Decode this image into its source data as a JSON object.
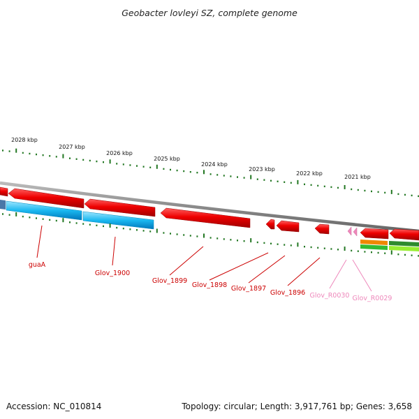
{
  "title": "Geobacter lovleyi SZ, complete genome",
  "footer": {
    "accession": "Accession: NC_010814",
    "summary": "Topology: circular; Length: 3,917,761 bp; Genes: 3,658"
  },
  "ruler": [
    "2028 kbp",
    "2027 kbp",
    "2026 kbp",
    "2025 kbp",
    "2024 kbp",
    "2023 kbp",
    "2022 kbp",
    "2021 kbp"
  ],
  "colors": {
    "gene_red": "#ee0000",
    "gene_blue": "#00aaee",
    "rna_pink": "#ee88bb",
    "backbone": "#888888",
    "tick_green": "#227722",
    "label_red": "#cc0000",
    "label_pink": "#ee88bb",
    "orange": "#ee8800",
    "light_green": "#99ee33",
    "green": "#33bb33"
  },
  "genes": [
    {
      "name": "guaA",
      "kind": "cds"
    },
    {
      "name": "Glov_1900",
      "kind": "cds"
    },
    {
      "name": "Glov_1899",
      "kind": "cds"
    },
    {
      "name": "Glov_1898",
      "kind": "cds"
    },
    {
      "name": "Glov_1897",
      "kind": "cds"
    },
    {
      "name": "Glov_1896",
      "kind": "cds"
    },
    {
      "name": "Glov_R0030",
      "kind": "rna"
    },
    {
      "name": "Glov_R0029",
      "kind": "rna"
    }
  ]
}
